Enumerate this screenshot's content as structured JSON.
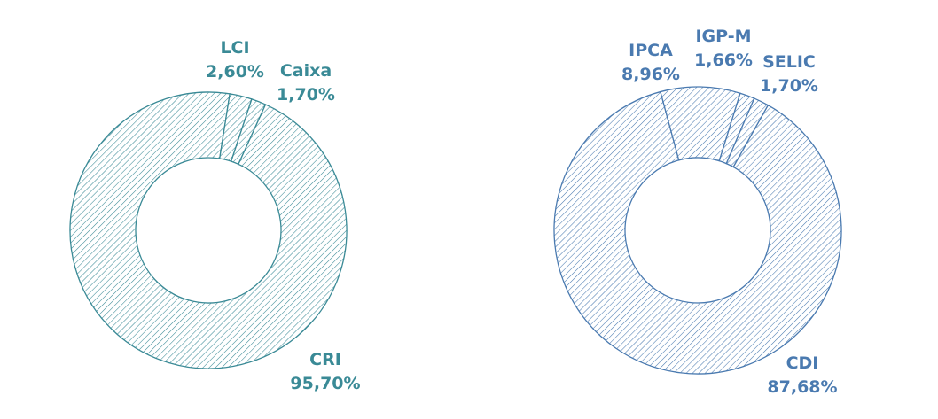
{
  "chart_data": [
    {
      "type": "pie",
      "style": "donut",
      "color": "#3a8a96",
      "slices": [
        {
          "label": "CRI",
          "value": 95.7,
          "text": "95,70%"
        },
        {
          "label": "LCI",
          "value": 2.6,
          "text": "2,60%"
        },
        {
          "label": "Caixa",
          "value": 1.7,
          "text": "1,70%"
        }
      ]
    },
    {
      "type": "pie",
      "style": "donut",
      "color": "#4a7ab0",
      "slices": [
        {
          "label": "CDI",
          "value": 87.68,
          "text": "87,68%"
        },
        {
          "label": "IPCA",
          "value": 8.96,
          "text": "8,96%"
        },
        {
          "label": "IGP-M",
          "value": 1.66,
          "text": "1,66%"
        },
        {
          "label": "SELIC",
          "value": 1.7,
          "text": "1,70%"
        }
      ]
    }
  ]
}
